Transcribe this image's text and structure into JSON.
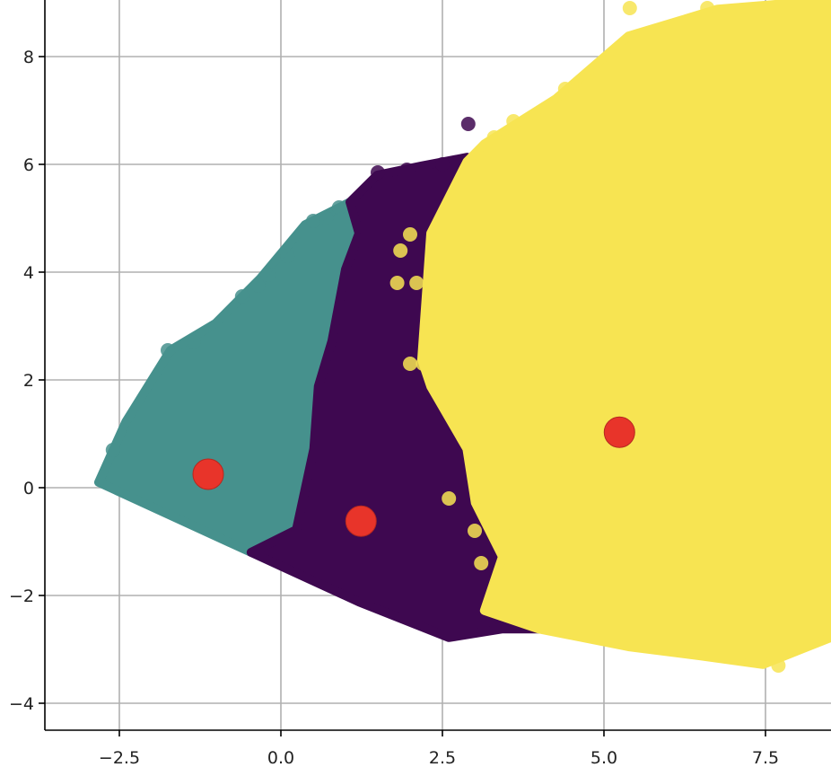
{
  "chart_data": {
    "type": "scatter",
    "title": "",
    "xlabel": "",
    "ylabel": "",
    "xlim": [
      -3.65,
      8.5
    ],
    "ylim": [
      -4.5,
      9.05
    ],
    "grid": true,
    "x_ticks": [
      -2.5,
      0.0,
      2.5,
      5.0,
      7.5
    ],
    "x_tick_labels": [
      "−2.5",
      "0.0",
      "2.5",
      "5.0",
      "7.5"
    ],
    "y_ticks": [
      -4,
      -2,
      0,
      2,
      4,
      6,
      8
    ],
    "y_tick_labels": [
      "−4",
      "−2",
      "0",
      "2",
      "4",
      "6",
      "8"
    ],
    "clusters": [
      {
        "name": "cluster-teal",
        "color": "#46918d",
        "outline": [
          [
            -2.82,
            0.1
          ],
          [
            -2.4,
            1.22
          ],
          [
            -1.71,
            2.55
          ],
          [
            -1.01,
            3.05
          ],
          [
            -0.32,
            3.88
          ],
          [
            0.375,
            4.88
          ],
          [
            1.07,
            5.3
          ],
          [
            1.21,
            4.72
          ],
          [
            1.0,
            4.05
          ],
          [
            0.79,
            2.72
          ],
          [
            0.58,
            1.88
          ],
          [
            0.51,
            0.72
          ],
          [
            0.24,
            -0.78
          ],
          [
            -0.46,
            -1.2
          ]
        ],
        "points": [
          [
            -1.75,
            2.55
          ],
          [
            -0.35,
            3.75
          ],
          [
            -0.2,
            3.95
          ],
          [
            0.1,
            4.3
          ],
          [
            0.5,
            4.95
          ],
          [
            0.7,
            5.0
          ],
          [
            0.9,
            5.2
          ],
          [
            -1.35,
            2.7
          ],
          [
            -0.6,
            3.55
          ],
          [
            1.0,
            3.9
          ],
          [
            1.1,
            4.1
          ],
          [
            0.95,
            2.85
          ],
          [
            -2.6,
            0.7
          ]
        ]
      },
      {
        "name": "cluster-purple",
        "color": "#3e0850",
        "outline": [
          [
            -0.46,
            -1.2
          ],
          [
            0.24,
            -0.78
          ],
          [
            0.51,
            0.72
          ],
          [
            0.58,
            1.88
          ],
          [
            0.79,
            2.72
          ],
          [
            1.0,
            4.05
          ],
          [
            1.21,
            4.72
          ],
          [
            1.07,
            5.3
          ],
          [
            1.49,
            5.8
          ],
          [
            2.18,
            5.97
          ],
          [
            2.88,
            6.13
          ],
          [
            3.15,
            5.72
          ],
          [
            3.43,
            4.72
          ],
          [
            3.57,
            3.22
          ],
          [
            3.99,
            3.05
          ],
          [
            4.26,
            2.05
          ],
          [
            4.54,
            0.72
          ],
          [
            4.54,
            -1.28
          ],
          [
            4.26,
            -2.62
          ],
          [
            3.43,
            -2.62
          ],
          [
            2.6,
            -2.78
          ],
          [
            1.21,
            -2.12
          ]
        ],
        "points": [
          [
            2.9,
            6.75
          ],
          [
            2.5,
            6.0
          ],
          [
            1.95,
            5.9
          ],
          [
            1.5,
            5.85
          ],
          [
            3.7,
            3.1
          ],
          [
            3.9,
            2.9
          ],
          [
            4.1,
            2.2
          ],
          [
            4.35,
            1.1
          ],
          [
            4.5,
            -0.1
          ],
          [
            4.45,
            -1.5
          ],
          [
            4.1,
            -2.55
          ],
          [
            3.6,
            -2.55
          ],
          [
            2.6,
            -2.6
          ],
          [
            4.3,
            -2.6
          ],
          [
            4.45,
            -0.6
          ],
          [
            1.6,
            3.6
          ],
          [
            1.3,
            4.6
          ]
        ]
      },
      {
        "name": "cluster-yellow",
        "color": "#f7e452",
        "outline": [
          [
            2.18,
            2.38
          ],
          [
            2.32,
            4.72
          ],
          [
            2.88,
            6.05
          ],
          [
            3.15,
            6.38
          ],
          [
            4.26,
            7.22
          ],
          [
            5.38,
            8.38
          ],
          [
            6.76,
            8.88
          ],
          [
            8.51,
            9.05
          ],
          [
            8.51,
            -2.78
          ],
          [
            7.46,
            -3.28
          ],
          [
            6.49,
            -3.12
          ],
          [
            5.38,
            -2.95
          ],
          [
            3.99,
            -2.62
          ],
          [
            3.15,
            -2.28
          ],
          [
            3.43,
            -1.28
          ],
          [
            3.01,
            -0.28
          ],
          [
            2.88,
            0.72
          ],
          [
            2.32,
            1.88
          ]
        ],
        "points": [
          [
            5.3,
            8.1
          ],
          [
            5.4,
            8.9
          ],
          [
            4.4,
            7.4
          ],
          [
            3.3,
            6.5
          ],
          [
            3.6,
            6.8
          ],
          [
            1.8,
            3.8
          ],
          [
            2.1,
            3.8
          ],
          [
            2.0,
            4.7
          ],
          [
            1.85,
            4.4
          ],
          [
            2.2,
            2.3
          ],
          [
            2.0,
            2.3
          ],
          [
            2.6,
            -0.2
          ],
          [
            3.0,
            -0.8
          ],
          [
            3.1,
            -1.4
          ],
          [
            3.5,
            -0.9
          ],
          [
            3.8,
            -1.6
          ],
          [
            4.2,
            -1.0
          ],
          [
            4.4,
            0.5
          ],
          [
            4.7,
            0.8
          ],
          [
            3.6,
            1.5
          ],
          [
            3.9,
            0.2
          ],
          [
            6.4,
            -3.0
          ],
          [
            7.1,
            -3.1
          ],
          [
            7.7,
            -3.3
          ],
          [
            5.7,
            -2.9
          ],
          [
            6.1,
            8.3
          ],
          [
            6.6,
            8.9
          ]
        ]
      }
    ],
    "centroids": {
      "color": "#e8342a",
      "points": [
        [
          -1.125,
          0.25
        ],
        [
          1.24,
          -0.62
        ],
        [
          5.24,
          1.03
        ]
      ]
    }
  }
}
